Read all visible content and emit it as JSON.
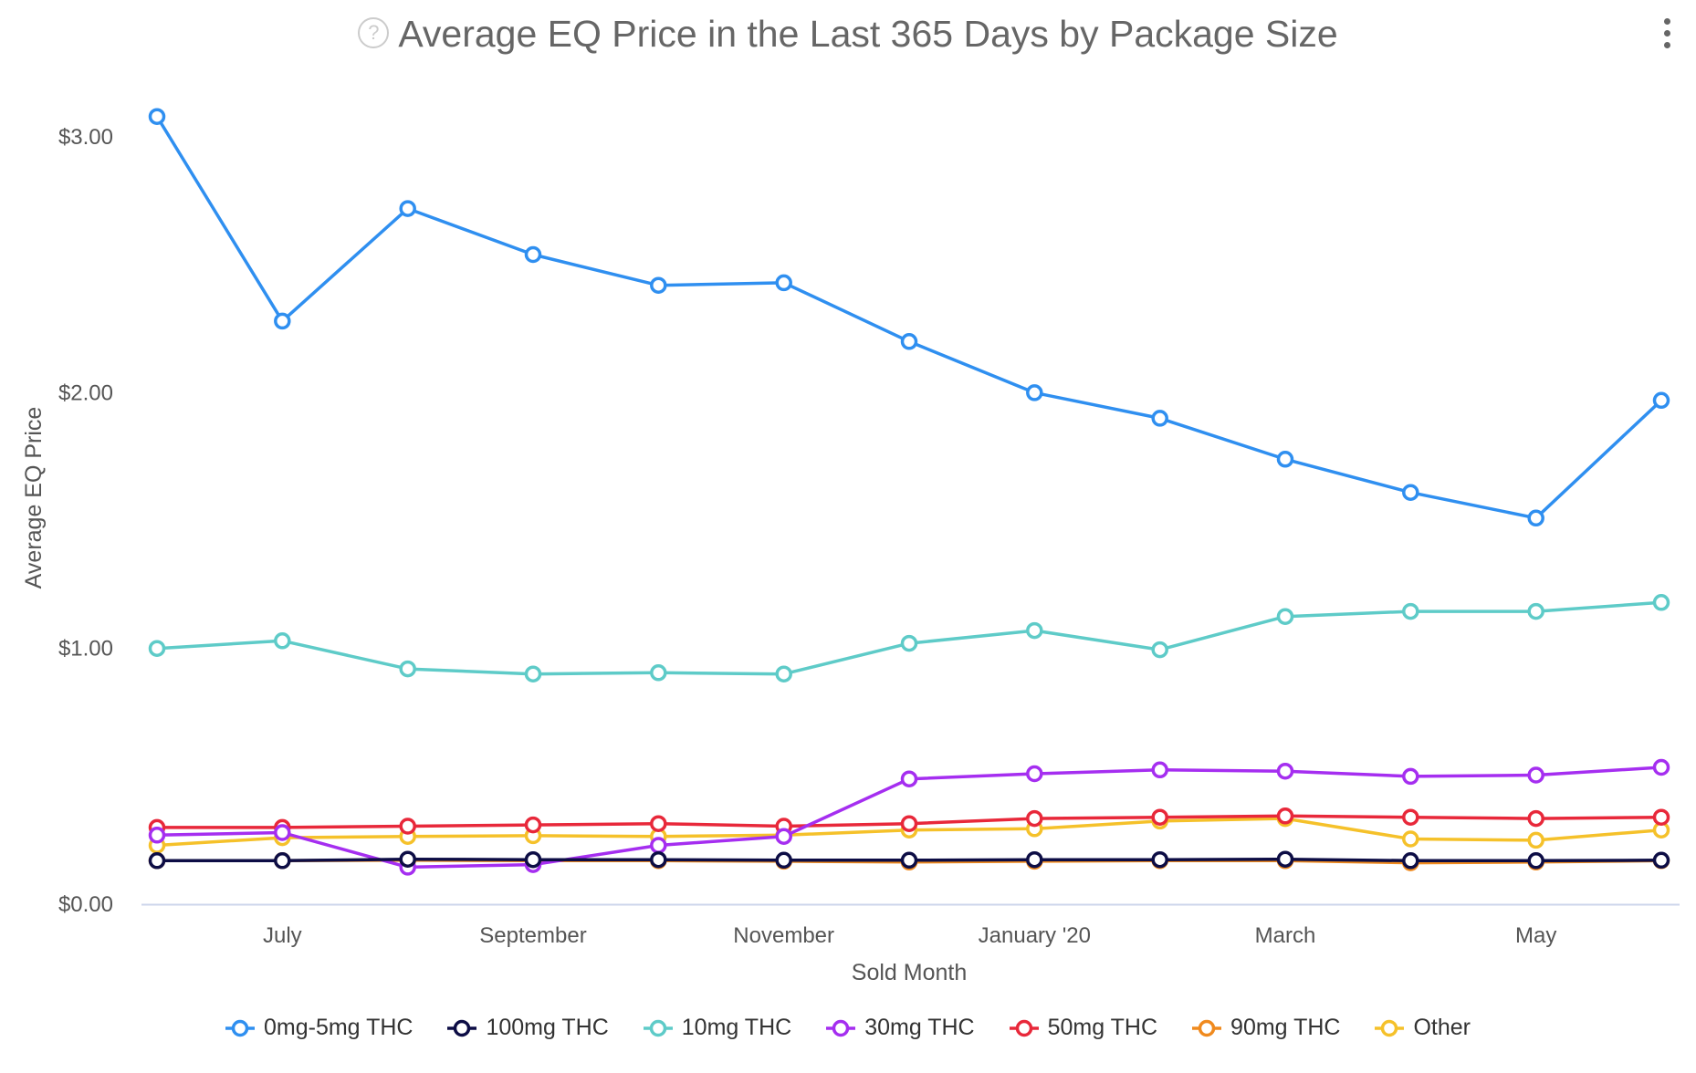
{
  "header": {
    "title": "Average EQ Price in the Last 365 Days by Package Size",
    "help_icon": "help-circle-icon",
    "menu_icon": "vertical-dots-menu-icon"
  },
  "chart_data": {
    "type": "line",
    "title": "Average EQ Price in the Last 365 Days by Package Size",
    "xlabel": "Sold Month",
    "ylabel": "Average EQ Price",
    "x": [
      "2019-06",
      "2019-07",
      "2019-08",
      "2019-09",
      "2019-10",
      "2019-11",
      "2019-12",
      "2020-01",
      "2020-02",
      "2020-03",
      "2020-04",
      "2020-05",
      "2020-06"
    ],
    "x_tick_labels": [
      {
        "x": "2019-07",
        "label": "July"
      },
      {
        "x": "2019-09",
        "label": "September"
      },
      {
        "x": "2019-11",
        "label": "November"
      },
      {
        "x": "2020-01",
        "label": "January '20"
      },
      {
        "x": "2020-03",
        "label": "March"
      },
      {
        "x": "2020-05",
        "label": "May"
      }
    ],
    "y_ticks": [
      {
        "value": 0,
        "label": "$0.00"
      },
      {
        "value": 1,
        "label": "$1.00"
      },
      {
        "value": 2,
        "label": "$2.00"
      },
      {
        "value": 3,
        "label": "$3.00"
      }
    ],
    "ylim": [
      0,
      3.2
    ],
    "grid": false,
    "legend_position": "bottom",
    "series": [
      {
        "name": "0mg-5mg THC",
        "color": "#2f8ff0",
        "values": [
          3.08,
          2.28,
          2.72,
          2.54,
          2.42,
          2.43,
          2.2,
          2.0,
          1.9,
          1.74,
          1.61,
          1.51,
          1.97
        ]
      },
      {
        "name": "100mg THC",
        "color": "#0d0d45",
        "values": [
          0.17,
          0.17,
          0.176,
          0.174,
          0.174,
          0.172,
          0.172,
          0.174,
          0.174,
          0.176,
          0.17,
          0.17,
          0.172
        ]
      },
      {
        "name": "10mg THC",
        "color": "#5ecbc8",
        "values": [
          1.0,
          1.03,
          0.92,
          0.9,
          0.905,
          0.9,
          1.02,
          1.07,
          0.995,
          1.125,
          1.145,
          1.145,
          1.18
        ]
      },
      {
        "name": "30mg THC",
        "color": "#a52ef0",
        "values": [
          0.27,
          0.28,
          0.145,
          0.155,
          0.23,
          0.265,
          0.49,
          0.51,
          0.525,
          0.52,
          0.5,
          0.505,
          0.535
        ]
      },
      {
        "name": "50mg THC",
        "color": "#e8283a",
        "values": [
          0.3,
          0.3,
          0.305,
          0.31,
          0.315,
          0.305,
          0.315,
          0.335,
          0.34,
          0.345,
          0.34,
          0.335,
          0.34
        ]
      },
      {
        "name": "90mg THC",
        "color": "#f08a1e",
        "values": [
          0.17,
          0.17,
          0.172,
          0.17,
          0.17,
          0.168,
          0.165,
          0.168,
          0.17,
          0.17,
          0.162,
          0.165,
          0.17
        ]
      },
      {
        "name": "Other",
        "color": "#f5c12a",
        "values": [
          0.23,
          0.26,
          0.265,
          0.268,
          0.265,
          0.27,
          0.29,
          0.295,
          0.325,
          0.335,
          0.255,
          0.25,
          0.29
        ]
      }
    ]
  }
}
